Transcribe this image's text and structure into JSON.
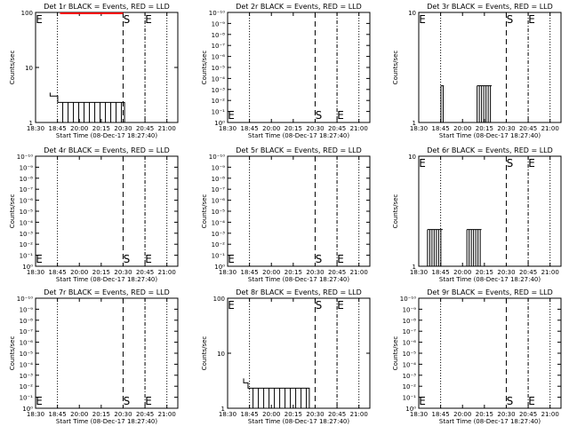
{
  "chart_data": [
    {
      "type": "line",
      "title": "Det 1r BLACK = Events, RED = LLD",
      "xlabel": "Start Time (08-Dec-17 18:27:40)",
      "ylabel": "Counts/sec",
      "scale": "log",
      "ylim": [
        1,
        100
      ],
      "ytick_labels": [
        "1",
        "10",
        "100"
      ],
      "xlim": [
        "18:30",
        "21:15"
      ],
      "xtick_labels": [
        "18:30",
        "18:45",
        "20:00",
        "20:15",
        "20:30",
        "20:45",
        "21:00"
      ],
      "markers": [
        {
          "label": "E",
          "x": "18:30"
        },
        {
          "label": "S",
          "x": "20:30"
        },
        {
          "label": "E",
          "x": "20:45"
        }
      ],
      "series": [
        {
          "name": "Events",
          "color": "#000000",
          "points": [
            [
              "18:40",
              3.0
            ],
            [
              "18:46",
              2.6
            ],
            [
              "18:54",
              2.0
            ],
            [
              "20:31",
              2.0
            ]
          ]
        },
        {
          "name": "LLD",
          "color": "#ff0000",
          "points": [
            [
              "18:54",
              100
            ],
            [
              "20:30",
              100
            ]
          ]
        }
      ]
    },
    {
      "type": "line",
      "title": "Det 2r BLACK = Events, RED = LLD",
      "xlabel": "Start Time (08-Dec-17 18:27:40)",
      "ylabel": "Counts/sec",
      "scale": "log",
      "ylim": [
        1,
        1e-10
      ],
      "ytick_labels": [
        "10⁰",
        "10⁻¹",
        "10⁻²",
        "10⁻³",
        "10⁻⁴",
        "10⁻⁵",
        "10⁻⁶",
        "10⁻⁷",
        "10⁻⁸",
        "10⁻⁹",
        "10⁻¹⁰"
      ],
      "xlim": [
        "18:30",
        "21:15"
      ],
      "xtick_labels": [
        "18:30",
        "18:45",
        "20:00",
        "20:15",
        "20:30",
        "20:45",
        "21:00"
      ],
      "markers": [
        {
          "label": "E",
          "x": "18:30"
        },
        {
          "label": "S",
          "x": "20:30"
        },
        {
          "label": "E",
          "x": "20:45"
        }
      ],
      "series": []
    },
    {
      "type": "line",
      "title": "Det 3r BLACK = Events, RED = LLD",
      "xlabel": "Start Time (08-Dec-17 18:27:40)",
      "ylabel": "Counts/sec",
      "scale": "log",
      "ylim": [
        1,
        10
      ],
      "ytick_labels": [
        "1",
        "10"
      ],
      "xlim": [
        "18:30",
        "21:15"
      ],
      "xtick_labels": [
        "18:30",
        "18:45",
        "20:00",
        "20:15",
        "20:30",
        "20:45",
        "21:00"
      ],
      "markers": [
        {
          "label": "E",
          "x": "18:30"
        },
        {
          "label": "S",
          "x": "20:30"
        },
        {
          "label": "E",
          "x": "20:45"
        }
      ],
      "series": [
        {
          "name": "Events",
          "color": "#000000",
          "points": [
            [
              "18:46",
              2.0
            ],
            [
              "18:56",
              2.0
            ],
            [
              "20:10",
              2.0
            ],
            [
              "20:20",
              2.0
            ]
          ]
        }
      ]
    },
    {
      "type": "line",
      "title": "Det 4r BLACK = Events, RED = LLD",
      "xlabel": "Start Time (08-Dec-17 18:27:40)",
      "ylabel": "Counts/sec",
      "scale": "log",
      "ylim": [
        1,
        1e-10
      ],
      "ytick_labels": [
        "10⁰",
        "10⁻¹",
        "10⁻²",
        "10⁻³",
        "10⁻⁴",
        "10⁻⁵",
        "10⁻⁶",
        "10⁻⁷",
        "10⁻⁸",
        "10⁻⁹",
        "10⁻¹⁰"
      ],
      "xlim": [
        "18:30",
        "21:15"
      ],
      "xtick_labels": [
        "18:30",
        "18:45",
        "20:00",
        "20:15",
        "20:30",
        "20:45",
        "21:00"
      ],
      "markers": [
        {
          "label": "E",
          "x": "18:30"
        },
        {
          "label": "S",
          "x": "20:30"
        },
        {
          "label": "E",
          "x": "20:45"
        }
      ],
      "series": []
    },
    {
      "type": "line",
      "title": "Det 5r BLACK = Events, RED = LLD",
      "xlabel": "Start Time (08-Dec-17 18:27:40)",
      "ylabel": "Counts/sec",
      "scale": "log",
      "ylim": [
        1,
        1e-10
      ],
      "ytick_labels": [
        "10⁰",
        "10⁻¹",
        "10⁻²",
        "10⁻³",
        "10⁻⁴",
        "10⁻⁵",
        "10⁻⁶",
        "10⁻⁷",
        "10⁻⁸",
        "10⁻⁹",
        "10⁻¹⁰"
      ],
      "xlim": [
        "18:30",
        "21:15"
      ],
      "xtick_labels": [
        "18:30",
        "18:45",
        "20:00",
        "20:15",
        "20:30",
        "20:45",
        "21:00"
      ],
      "markers": [
        {
          "label": "E",
          "x": "18:30"
        },
        {
          "label": "S",
          "x": "20:30"
        },
        {
          "label": "E",
          "x": "20:45"
        }
      ],
      "series": []
    },
    {
      "type": "line",
      "title": "Det 6r BLACK = Events, RED = LLD",
      "xlabel": "Start Time (08-Dec-17 18:27:40)",
      "ylabel": "Counts/sec",
      "scale": "log",
      "ylim": [
        1,
        10
      ],
      "ytick_labels": [
        "1",
        "10"
      ],
      "xlim": [
        "18:30",
        "21:15"
      ],
      "xtick_labels": [
        "18:30",
        "18:45",
        "20:00",
        "20:15",
        "20:30",
        "20:45",
        "21:00"
      ],
      "markers": [
        {
          "label": "E",
          "x": "18:30"
        },
        {
          "label": "S",
          "x": "20:30"
        },
        {
          "label": "E",
          "x": "20:45"
        }
      ],
      "series": [
        {
          "name": "Events",
          "color": "#000000",
          "points": [
            [
              "18:36",
              2.0
            ],
            [
              "18:52",
              2.0
            ],
            [
              "20:03",
              2.0
            ],
            [
              "20:13",
              2.0
            ]
          ]
        }
      ]
    },
    {
      "type": "line",
      "title": "Det 7r BLACK = Events, RED = LLD",
      "xlabel": "Start Time (08-Dec-17 18:27:40)",
      "ylabel": "Counts/sec",
      "scale": "log",
      "ylim": [
        1,
        1e-10
      ],
      "ytick_labels": [
        "10⁰",
        "10⁻¹",
        "10⁻²",
        "10⁻³",
        "10⁻⁴",
        "10⁻⁵",
        "10⁻⁶",
        "10⁻⁷",
        "10⁻⁸",
        "10⁻⁹",
        "10⁻¹⁰"
      ],
      "xlim": [
        "18:30",
        "21:15"
      ],
      "xtick_labels": [
        "18:30",
        "18:45",
        "20:00",
        "20:15",
        "20:30",
        "20:45",
        "21:00"
      ],
      "markers": [
        {
          "label": "E",
          "x": "18:30"
        },
        {
          "label": "S",
          "x": "20:30"
        },
        {
          "label": "E",
          "x": "20:45"
        }
      ],
      "series": []
    },
    {
      "type": "line",
      "title": "Det 8r BLACK = Events, RED = LLD",
      "xlabel": "Start Time (08-Dec-17 18:27:40)",
      "ylabel": "Counts/sec",
      "scale": "log",
      "ylim": [
        1,
        100
      ],
      "ytick_labels": [
        "1",
        "10",
        "100"
      ],
      "xlim": [
        "18:30",
        "21:15"
      ],
      "xtick_labels": [
        "18:30",
        "18:45",
        "20:00",
        "20:15",
        "20:30",
        "20:45",
        "21:00"
      ],
      "markers": [
        {
          "label": "E",
          "x": "18:30"
        },
        {
          "label": "S",
          "x": "20:30"
        },
        {
          "label": "E",
          "x": "20:45"
        }
      ],
      "series": [
        {
          "name": "Events",
          "color": "#000000",
          "points": [
            [
              "18:41",
              3.0
            ],
            [
              "18:44",
              2.5
            ],
            [
              "18:48",
              2.0
            ],
            [
              "20:26",
              2.0
            ]
          ]
        }
      ]
    },
    {
      "type": "line",
      "title": "Det 9r BLACK = Events, RED = LLD",
      "xlabel": "Start Time (08-Dec-17 18:27:40)",
      "ylabel": "Counts/sec",
      "scale": "log",
      "ylim": [
        1,
        1e-10
      ],
      "ytick_labels": [
        "10⁰",
        "10⁻¹",
        "10⁻²",
        "10⁻³",
        "10⁻⁴",
        "10⁻⁵",
        "10⁻⁶",
        "10⁻⁷",
        "10⁻⁸",
        "10⁻⁹",
        "10⁻¹⁰"
      ],
      "xlim": [
        "18:30",
        "21:15"
      ],
      "xtick_labels": [
        "18:30",
        "18:45",
        "20:00",
        "20:15",
        "20:30",
        "20:45",
        "21:00"
      ],
      "markers": [
        {
          "label": "E",
          "x": "18:30"
        },
        {
          "label": "S",
          "x": "20:30"
        },
        {
          "label": "E",
          "x": "20:45"
        }
      ],
      "series": []
    }
  ]
}
